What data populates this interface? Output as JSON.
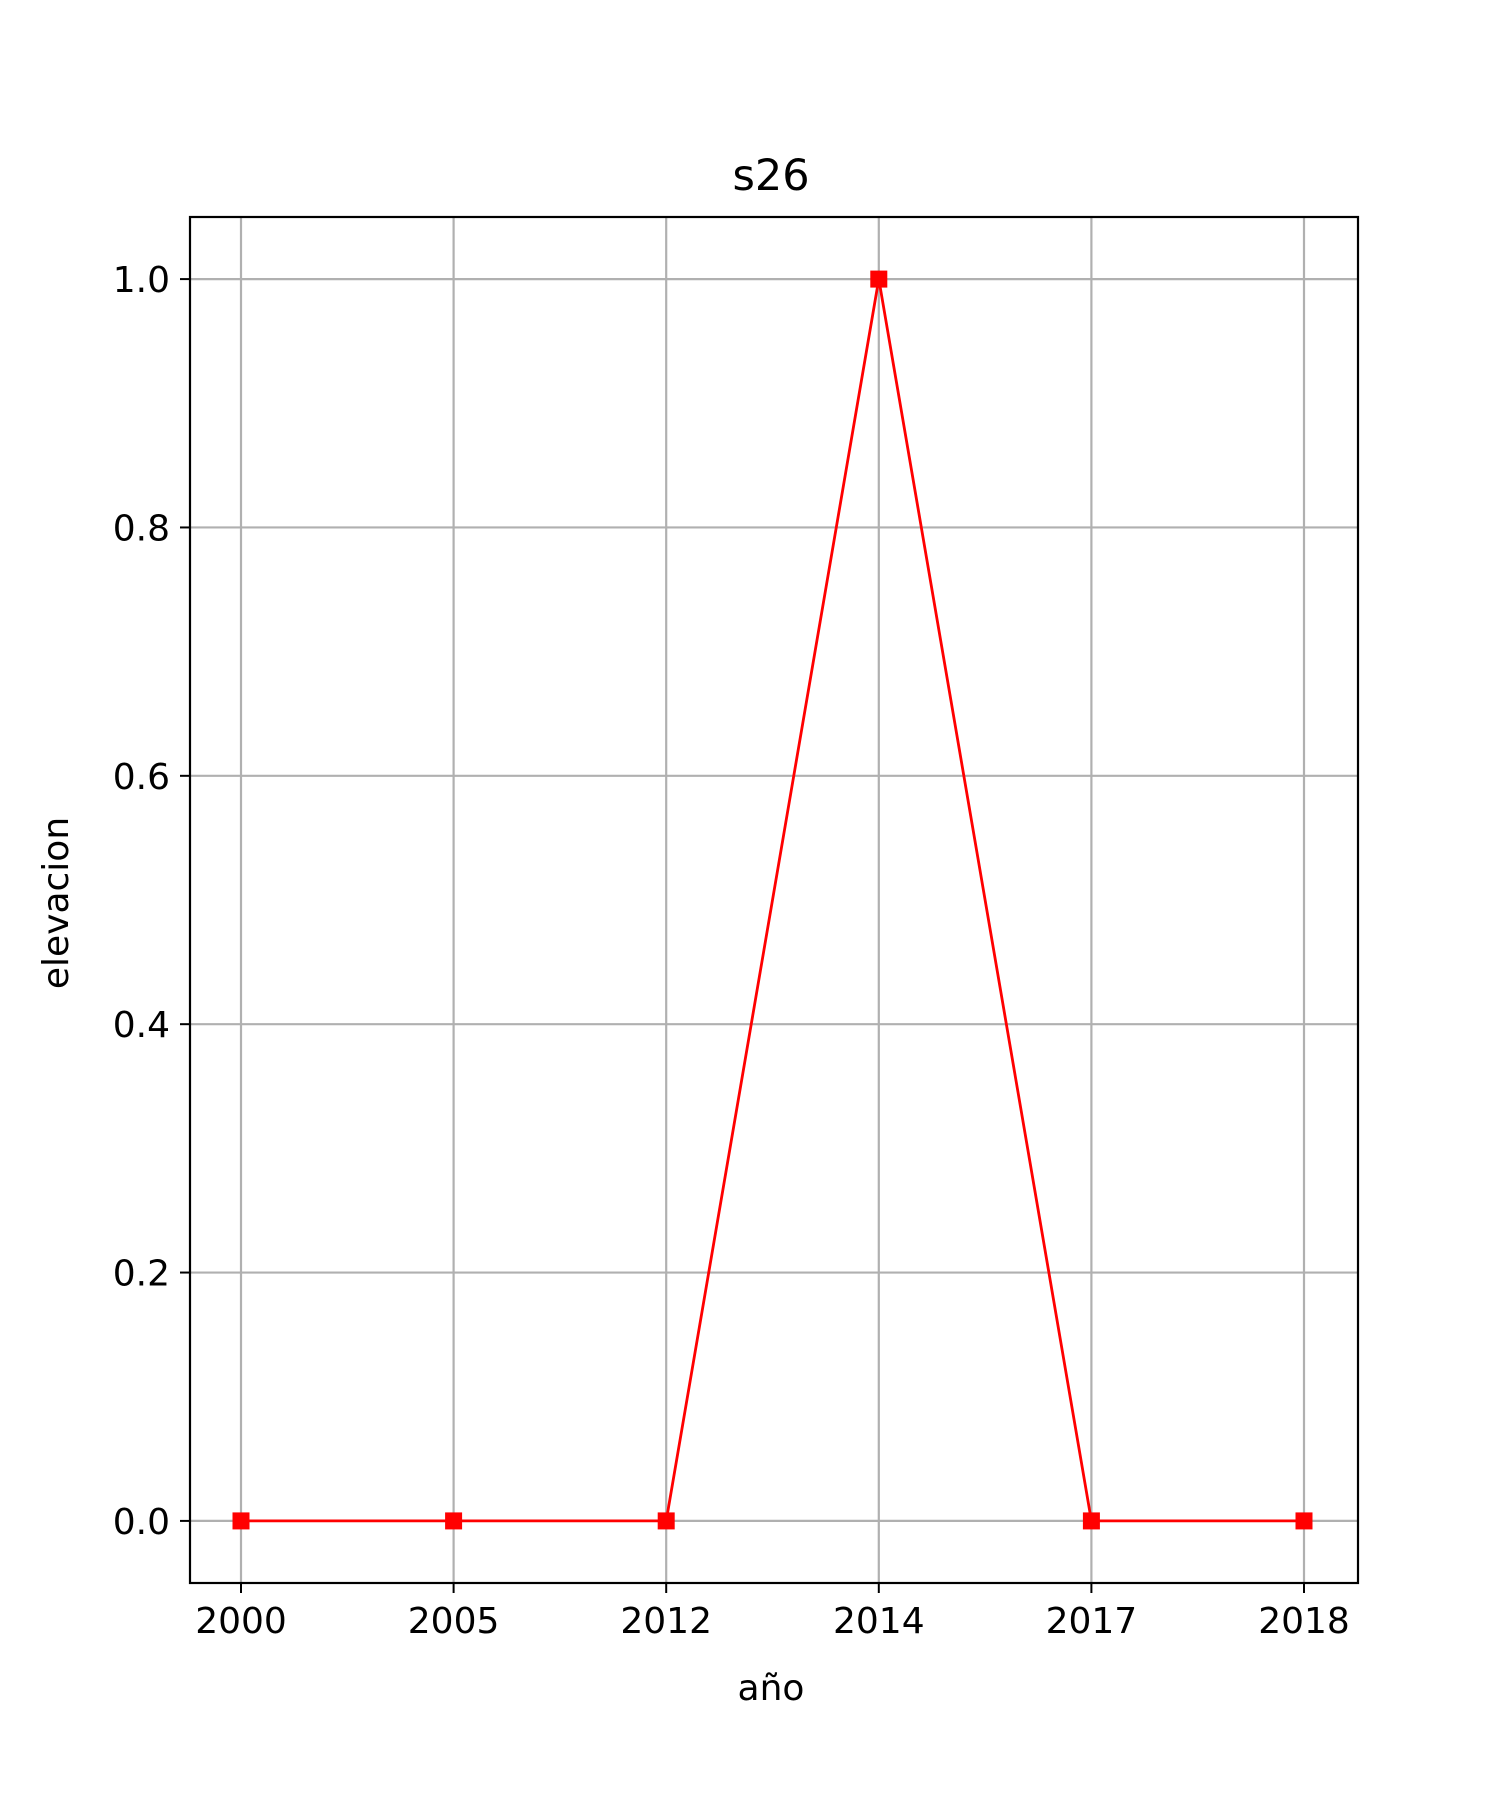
{
  "chart_data": {
    "type": "line",
    "title": "s26",
    "xlabel": "año",
    "ylabel": "elevacion",
    "categories": [
      "2000",
      "2005",
      "2012",
      "2014",
      "2017",
      "2018"
    ],
    "series": [
      {
        "values": [
          0.0,
          0.0,
          0.0,
          1.0,
          0.0,
          0.0
        ],
        "color": "#ff0000",
        "marker": "square"
      }
    ],
    "yticks": [
      "0.0",
      "0.2",
      "0.4",
      "0.6",
      "0.8",
      "1.0"
    ],
    "ylim": [
      -0.05,
      1.05
    ],
    "grid": true,
    "legend": "none"
  }
}
